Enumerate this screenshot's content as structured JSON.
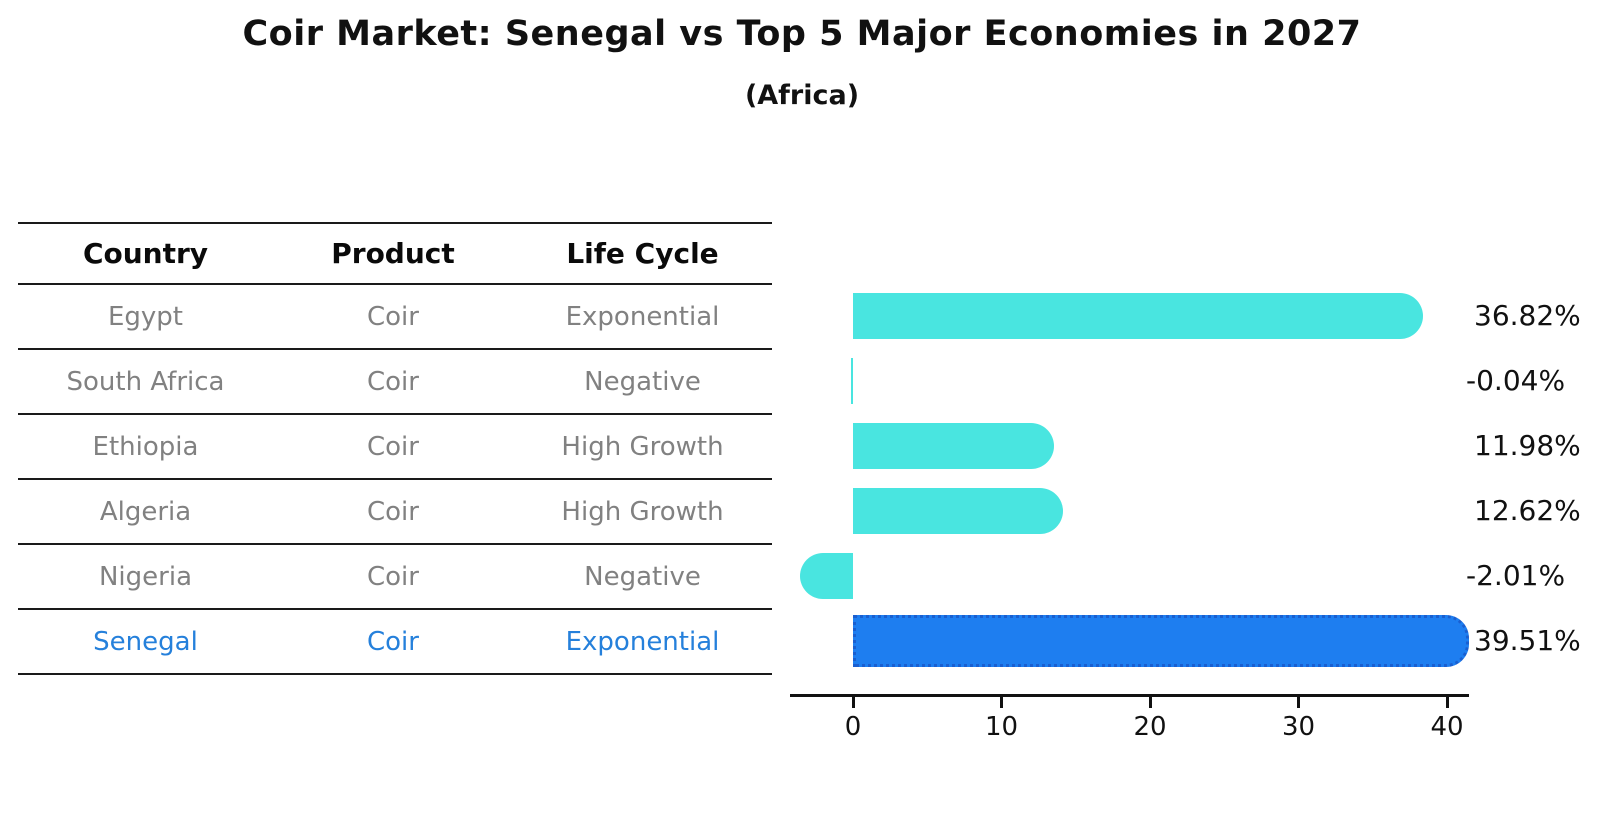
{
  "title": "Coir Market: Senegal vs Top 5 Major Economies in 2027",
  "subtitle": "(Africa)",
  "table": {
    "headers": [
      "Country",
      "Product",
      "Life Cycle"
    ],
    "rows": [
      {
        "country": "Egypt",
        "product": "Coir",
        "life_cycle": "Exponential",
        "highlight": false
      },
      {
        "country": "South Africa",
        "product": "Coir",
        "life_cycle": "Negative",
        "highlight": false
      },
      {
        "country": "Ethiopia",
        "product": "Coir",
        "life_cycle": "High Growth",
        "highlight": false
      },
      {
        "country": "Algeria",
        "product": "Coir",
        "life_cycle": "High Growth",
        "highlight": false
      },
      {
        "country": "Nigeria",
        "product": "Coir",
        "life_cycle": "Negative",
        "highlight": false
      },
      {
        "country": "Senegal",
        "product": "Coir",
        "life_cycle": "Exponential",
        "highlight": true
      }
    ]
  },
  "chart_data": {
    "type": "bar",
    "orientation": "horizontal",
    "title": "Coir Market: Senegal vs Top 5 Major Economies in 2027",
    "subtitle": "(Africa)",
    "categories": [
      "Egypt",
      "South Africa",
      "Ethiopia",
      "Algeria",
      "Nigeria",
      "Senegal"
    ],
    "values": [
      36.82,
      -0.04,
      11.98,
      12.62,
      -2.01,
      39.51
    ],
    "value_labels": [
      "36.82%",
      "-0.04%",
      "11.98%",
      "12.62%",
      "-2.01%",
      "39.51%"
    ],
    "unit": "%",
    "x_ticks": [
      0,
      10,
      20,
      30,
      40
    ],
    "x_tick_labels": [
      "0",
      "10",
      "20",
      "30",
      "40"
    ],
    "xlim": [
      -4.2,
      41.5
    ],
    "grid": false,
    "legend": "none",
    "highlight_index": 5,
    "highlight_category": "Senegal"
  },
  "colors": {
    "bar_turquoise": "#49E5E0",
    "bar_highlight_blue": "#1E7EF0",
    "bar_highlight_border": "#1A5FD0",
    "highlight_text_blue": "#2580DB",
    "table_text_gray": "#818181",
    "text_black": "#111111"
  }
}
